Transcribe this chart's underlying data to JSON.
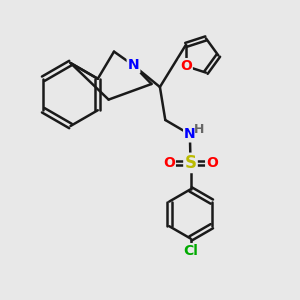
{
  "bg_color": "#e8e8e8",
  "bond_color": "#1a1a1a",
  "bond_width": 1.8,
  "atom_colors": {
    "N": "#0000ff",
    "O": "#ff0000",
    "S": "#bbbb00",
    "Cl": "#00aa00",
    "H": "#666666",
    "C": "#1a1a1a"
  },
  "font_size": 10,
  "figsize": [
    3.0,
    3.0
  ],
  "dpi": 100
}
